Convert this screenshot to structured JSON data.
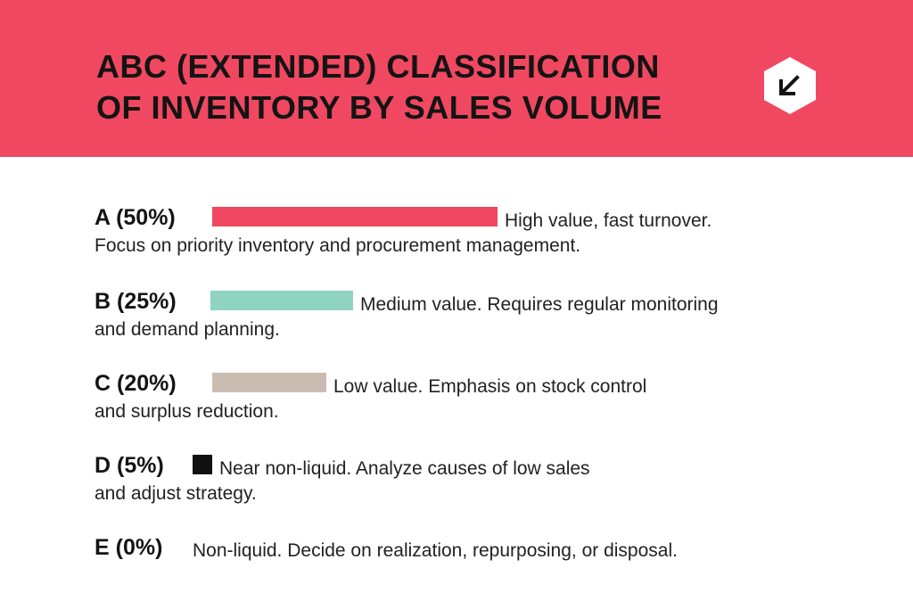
{
  "header": {
    "title_line1": "ABC (EXTENDED) CLASSIFICATION",
    "title_line2": "OF INVENTORY BY SALES VOLUME",
    "badge_icon": "arrow-down-left-icon",
    "banner_color": "#f04860"
  },
  "chart_data": {
    "type": "bar",
    "orientation": "horizontal",
    "title": "ABC (EXTENDED) CLASSIFICATION OF INVENTORY BY SALES VOLUME",
    "categories": [
      "A (50%)",
      "B (25%)",
      "C (20%)",
      "D (5%)",
      "E (0%)"
    ],
    "values": [
      50,
      25,
      20,
      5,
      0
    ],
    "colors": [
      "#f04860",
      "#8fd3c1",
      "#c9bdb2",
      "#111111",
      "#ffffff"
    ],
    "grid": false,
    "legend": "none",
    "rows": [
      {
        "label": "A (50%)",
        "value": 50,
        "color": "#f04860",
        "desc_line1": "High value, fast turnover.",
        "desc_line2": "Focus on priority inventory and procurement management."
      },
      {
        "label": "B (25%)",
        "value": 25,
        "color": "#8fd3c1",
        "desc_line1": "Medium value. Requires regular monitoring",
        "desc_line2": "and demand planning."
      },
      {
        "label": "C (20%)",
        "value": 20,
        "color": "#c9bdb2",
        "desc_line1": "Low value. Emphasis on stock control",
        "desc_line2": "and surplus reduction."
      },
      {
        "label": "D (5%)",
        "value": 5,
        "color": "#111111",
        "desc_line1": "Near non-liquid. Analyze causes of low sales",
        "desc_line2": "and adjust strategy."
      },
      {
        "label": "E (0%)",
        "value": 0,
        "color": "#ffffff",
        "desc_line1": "Non-liquid. Decide on realization, repurposing, or disposal.",
        "desc_line2": ""
      }
    ]
  }
}
